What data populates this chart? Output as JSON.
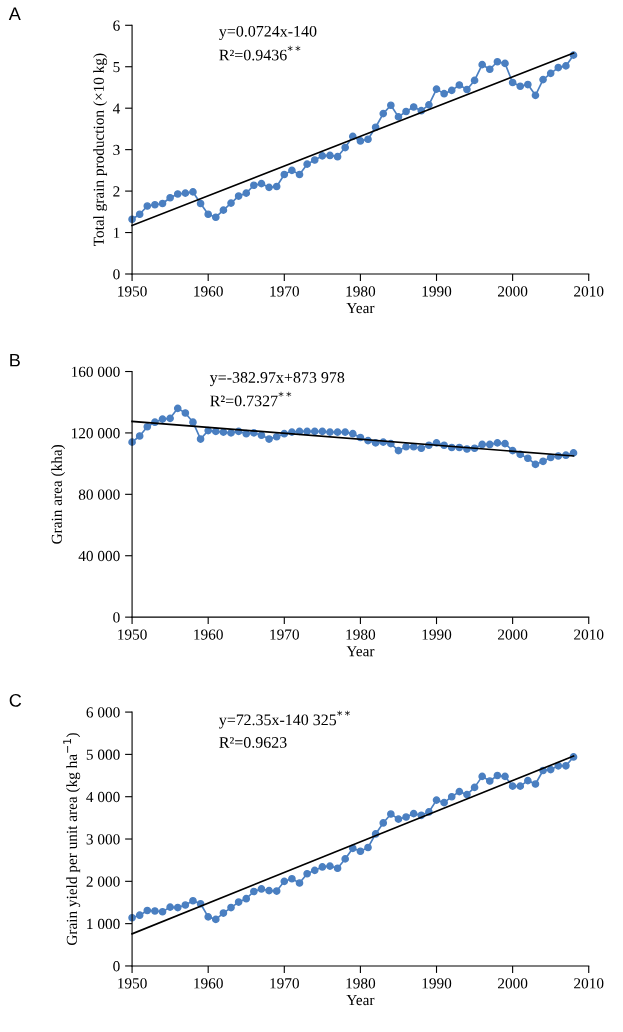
{
  "chart_data": [
    {
      "type": "line",
      "title": "A",
      "xlabel": "Year",
      "ylabel": "Total grain production (×10 kg)",
      "x": [
        1950,
        1951,
        1952,
        1953,
        1954,
        1955,
        1956,
        1957,
        1958,
        1959,
        1960,
        1961,
        1962,
        1963,
        1964,
        1965,
        1966,
        1967,
        1968,
        1969,
        1970,
        1971,
        1972,
        1973,
        1974,
        1975,
        1976,
        1977,
        1978,
        1979,
        1980,
        1981,
        1982,
        1983,
        1984,
        1985,
        1986,
        1987,
        1988,
        1989,
        1990,
        1991,
        1992,
        1993,
        1994,
        1995,
        1996,
        1997,
        1998,
        1999,
        2000,
        2001,
        2002,
        2003,
        2004,
        2005,
        2006,
        2007,
        2008
      ],
      "series": [
        {
          "color": "#4a7fc1",
          "marker": "circle",
          "values": [
            1.32,
            1.44,
            1.64,
            1.67,
            1.7,
            1.84,
            1.93,
            1.95,
            1.98,
            1.7,
            1.44,
            1.37,
            1.54,
            1.71,
            1.88,
            1.95,
            2.14,
            2.18,
            2.09,
            2.11,
            2.4,
            2.5,
            2.4,
            2.65,
            2.75,
            2.85,
            2.86,
            2.83,
            3.05,
            3.32,
            3.21,
            3.25,
            3.54,
            3.87,
            4.07,
            3.79,
            3.92,
            4.03,
            3.94,
            4.08,
            4.46,
            4.35,
            4.43,
            4.56,
            4.45,
            4.67,
            5.05,
            4.94,
            5.12,
            5.08,
            4.62,
            4.53,
            4.57,
            4.31,
            4.69,
            4.84,
            4.98,
            5.02,
            5.28
          ]
        },
        {
          "type": "line",
          "color": "#000000",
          "marker": "none",
          "values": [
            1.17,
            null,
            null,
            null,
            null,
            null,
            null,
            null,
            null,
            null,
            null,
            null,
            null,
            null,
            null,
            null,
            null,
            null,
            null,
            null,
            null,
            null,
            null,
            null,
            null,
            null,
            null,
            null,
            null,
            null,
            null,
            null,
            null,
            null,
            null,
            null,
            null,
            null,
            null,
            null,
            null,
            null,
            null,
            null,
            null,
            null,
            null,
            null,
            null,
            null,
            null,
            null,
            null,
            null,
            null,
            null,
            null,
            null,
            5.33
          ]
        }
      ],
      "xlim": [
        1950,
        2010
      ],
      "xticks": [
        1950,
        1960,
        1970,
        1980,
        1990,
        2000,
        2010
      ],
      "ylim": [
        0,
        6
      ],
      "yticks": [
        0,
        1,
        2,
        3,
        4,
        5,
        6
      ],
      "annotations": [
        "y=0.0724x-140",
        "R²=0.9436$^{**}$"
      ]
    },
    {
      "type": "line",
      "title": "B",
      "xlabel": "Year",
      "ylabel": "Grain area (kha)",
      "x": [
        1950,
        1951,
        1952,
        1953,
        1954,
        1955,
        1956,
        1957,
        1958,
        1959,
        1960,
        1961,
        1962,
        1963,
        1964,
        1965,
        1966,
        1967,
        1968,
        1969,
        1970,
        1971,
        1972,
        1973,
        1974,
        1975,
        1976,
        1977,
        1978,
        1979,
        1980,
        1981,
        1982,
        1983,
        1984,
        1985,
        1986,
        1987,
        1988,
        1989,
        1990,
        1991,
        1992,
        1993,
        1994,
        1995,
        1996,
        1997,
        1998,
        1999,
        2000,
        2001,
        2002,
        2003,
        2004,
        2005,
        2006,
        2007,
        2008
      ],
      "series": [
        {
          "color": "#4a7fc1",
          "marker": "circle",
          "values": [
            114000,
            118000,
            124000,
            127000,
            129000,
            129500,
            136000,
            133000,
            127000,
            116000,
            121500,
            121000,
            120500,
            120000,
            121000,
            119500,
            120000,
            118500,
            116000,
            117500,
            119500,
            120500,
            121000,
            121000,
            121000,
            121000,
            120500,
            120500,
            120500,
            119500,
            117000,
            115000,
            113500,
            114000,
            113000,
            108500,
            111000,
            111000,
            110000,
            112000,
            113500,
            112000,
            110500,
            110500,
            109500,
            110000,
            112500,
            112500,
            113500,
            113000,
            108500,
            106000,
            103500,
            99500,
            101500,
            104000,
            105000,
            105500,
            107000
          ]
        },
        {
          "type": "line",
          "color": "#000000",
          "marker": "none",
          "values": [
            127500,
            null,
            null,
            null,
            null,
            null,
            null,
            null,
            null,
            null,
            null,
            null,
            null,
            null,
            null,
            null,
            null,
            null,
            null,
            null,
            null,
            null,
            null,
            null,
            null,
            null,
            null,
            null,
            null,
            null,
            null,
            null,
            null,
            null,
            null,
            null,
            null,
            null,
            null,
            null,
            null,
            null,
            null,
            null,
            null,
            null,
            null,
            null,
            null,
            null,
            null,
            null,
            null,
            null,
            null,
            null,
            null,
            null,
            105000
          ]
        }
      ],
      "xlim": [
        1950,
        2010
      ],
      "xticks": [
        1950,
        1960,
        1970,
        1980,
        1990,
        2000,
        2010
      ],
      "ylim": [
        0,
        160000
      ],
      "yticks": [
        0,
        {
          "value": 40000,
          "label": "40 000"
        },
        {
          "value": 80000,
          "label": "80 000"
        },
        {
          "value": 120000,
          "label": "120 000"
        },
        {
          "value": 160000,
          "label": "160 000"
        }
      ],
      "annotations": [
        "y=-382.97x+873 978",
        "R²=0.7327$^{**}$"
      ]
    },
    {
      "type": "line",
      "title": "C",
      "xlabel": "Year",
      "ylabel": "Grain yield per unit area (kg ha$^{−1}$)",
      "x": [
        1950,
        1951,
        1952,
        1953,
        1954,
        1955,
        1956,
        1957,
        1958,
        1959,
        1960,
        1961,
        1962,
        1963,
        1964,
        1965,
        1966,
        1967,
        1968,
        1969,
        1970,
        1971,
        1972,
        1973,
        1974,
        1975,
        1976,
        1977,
        1978,
        1979,
        1980,
        1981,
        1982,
        1983,
        1984,
        1985,
        1986,
        1987,
        1988,
        1989,
        1990,
        1991,
        1992,
        1993,
        1994,
        1995,
        1996,
        1997,
        1998,
        1999,
        2000,
        2001,
        2002,
        2003,
        2004,
        2005,
        2006,
        2007,
        2008
      ],
      "series": [
        {
          "color": "#4a7fc1",
          "marker": "circle",
          "values": [
            1140,
            1200,
            1310,
            1300,
            1280,
            1390,
            1380,
            1440,
            1540,
            1470,
            1160,
            1100,
            1250,
            1380,
            1510,
            1590,
            1760,
            1820,
            1780,
            1770,
            2000,
            2060,
            1960,
            2180,
            2260,
            2340,
            2360,
            2310,
            2530,
            2780,
            2710,
            2800,
            3120,
            3380,
            3590,
            3470,
            3520,
            3600,
            3560,
            3640,
            3920,
            3860,
            4000,
            4120,
            4050,
            4220,
            4480,
            4370,
            4500,
            4480,
            4250,
            4250,
            4380,
            4300,
            4620,
            4640,
            4730,
            4730,
            4940
          ]
        },
        {
          "type": "line",
          "color": "#000000",
          "marker": "none",
          "values": [
            760,
            null,
            null,
            null,
            null,
            null,
            null,
            null,
            null,
            null,
            null,
            null,
            null,
            null,
            null,
            null,
            null,
            null,
            null,
            null,
            null,
            null,
            null,
            null,
            null,
            null,
            null,
            null,
            null,
            null,
            null,
            null,
            null,
            null,
            null,
            null,
            null,
            null,
            null,
            null,
            null,
            null,
            null,
            null,
            null,
            null,
            null,
            null,
            null,
            null,
            null,
            null,
            null,
            null,
            null,
            null,
            null,
            null,
            4960
          ]
        }
      ],
      "xlim": [
        1950,
        2010
      ],
      "xticks": [
        1950,
        1960,
        1970,
        1980,
        1990,
        2000,
        2010
      ],
      "ylim": [
        0,
        6000
      ],
      "yticks": [
        0,
        {
          "value": 1000,
          "label": "1 000"
        },
        {
          "value": 2000,
          "label": "2 000"
        },
        {
          "value": 3000,
          "label": "3 000"
        },
        {
          "value": 4000,
          "label": "4 000"
        },
        {
          "value": 5000,
          "label": "5 000"
        },
        {
          "value": 6000,
          "label": "6 000"
        }
      ],
      "annotations": [
        "y=72.35x-140 325$^{**}$",
        "R²=0.9623"
      ]
    }
  ]
}
